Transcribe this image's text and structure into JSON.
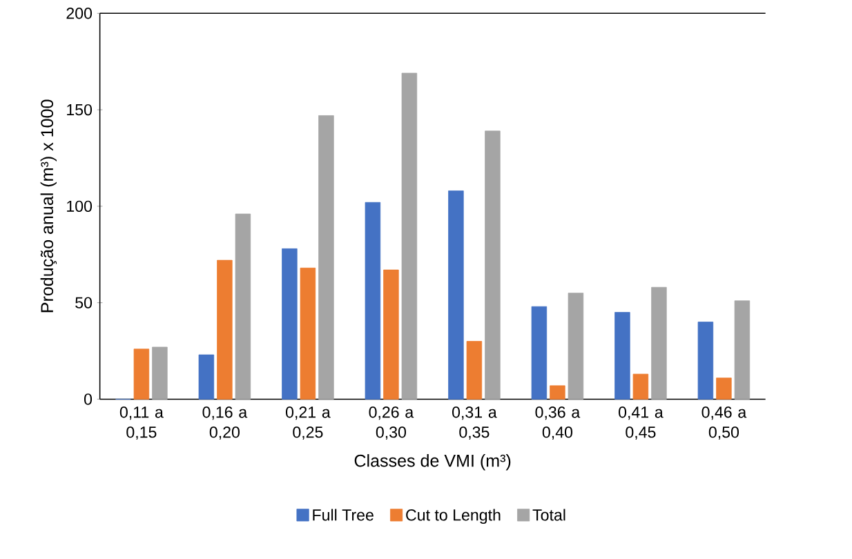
{
  "chart_data": {
    "type": "bar",
    "xlabel": "Classes de VMI (m³)",
    "ylabel": "Produção anual (m³) x 1000",
    "categories": [
      "0,11 a 0,15",
      "0,16 a 0,20",
      "0,21 a 0,25",
      "0,26 a 0,30",
      "0,31 a 0,35",
      "0,36 a 0,40",
      "0,41 a 0,45",
      "0,46 a 0,50"
    ],
    "series": [
      {
        "name": "Full Tree",
        "color": "#4472c4",
        "values": [
          0,
          23,
          78,
          102,
          108,
          48,
          45,
          40
        ]
      },
      {
        "name": "Cut to Length",
        "color": "#ed7d31",
        "values": [
          26,
          72,
          68,
          67,
          30,
          7,
          13,
          11
        ]
      },
      {
        "name": "Total",
        "color": "#a5a5a5",
        "values": [
          27,
          96,
          147,
          169,
          139,
          55,
          58,
          51
        ]
      }
    ],
    "ylim": [
      0,
      200
    ],
    "yticks": [
      0,
      50,
      100,
      150,
      200
    ],
    "legend": "bottom",
    "grid": false
  }
}
